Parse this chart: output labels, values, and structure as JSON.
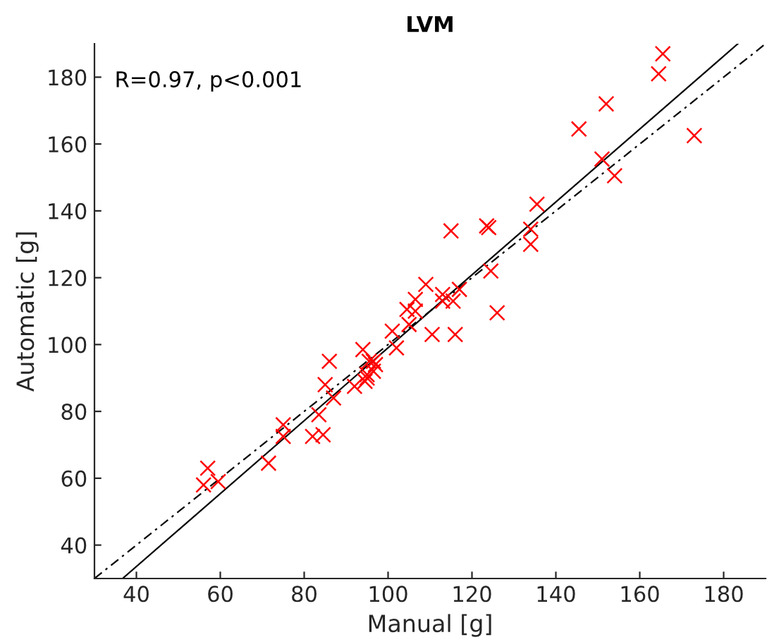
{
  "chart_data": {
    "type": "scatter",
    "title": "LVM",
    "xlabel": "Manual [g]",
    "ylabel": "Automatic [g]",
    "annotations": [
      "R=0.97, p<0.001"
    ],
    "xlim": [
      30,
      190
    ],
    "ylim": [
      30,
      190
    ],
    "xticks": [
      40,
      60,
      80,
      100,
      120,
      140,
      160,
      180
    ],
    "yticks": [
      40,
      60,
      80,
      100,
      120,
      140,
      160,
      180
    ],
    "grid": false,
    "legend": false,
    "series": [
      {
        "color": "#ff0000",
        "marker": "cross",
        "x": [
          56,
          57,
          59.5,
          71.5,
          75,
          75,
          82,
          84.5,
          83.5,
          85,
          86,
          87,
          92,
          94,
          94.5,
          95,
          95,
          95.5,
          96.5,
          96.5,
          97,
          101,
          102,
          105,
          104.5,
          106.5,
          106.5,
          109,
          110.5,
          113,
          113,
          115.5,
          116,
          117,
          126,
          115,
          123.5,
          124,
          124.5,
          134,
          134,
          135.5,
          145.5,
          152,
          151,
          154,
          164.5,
          165.5,
          173
        ],
        "values": [
          58,
          63,
          59,
          64.5,
          76,
          72.5,
          72.5,
          73,
          79,
          88,
          95,
          84,
          87.5,
          98.5,
          89,
          90,
          91,
          95,
          95,
          92,
          94,
          104,
          99,
          106,
          110.5,
          113.5,
          110,
          118,
          103,
          113,
          115,
          113,
          103,
          116.5,
          109.5,
          134,
          135.5,
          135,
          122,
          134.5,
          130,
          142,
          164.5,
          172,
          155.5,
          150.5,
          181,
          187,
          162.5
        ]
      },
      {
        "type": "line",
        "color": "#000000",
        "line_style": "solid",
        "marker": "none",
        "x": [
          36.7,
          183.4
        ],
        "values": [
          30,
          190
        ]
      },
      {
        "type": "line",
        "color": "#000000",
        "line_style": "dashed",
        "marker": "none",
        "x": [
          30,
          190
        ],
        "values": [
          30,
          190
        ]
      }
    ]
  }
}
